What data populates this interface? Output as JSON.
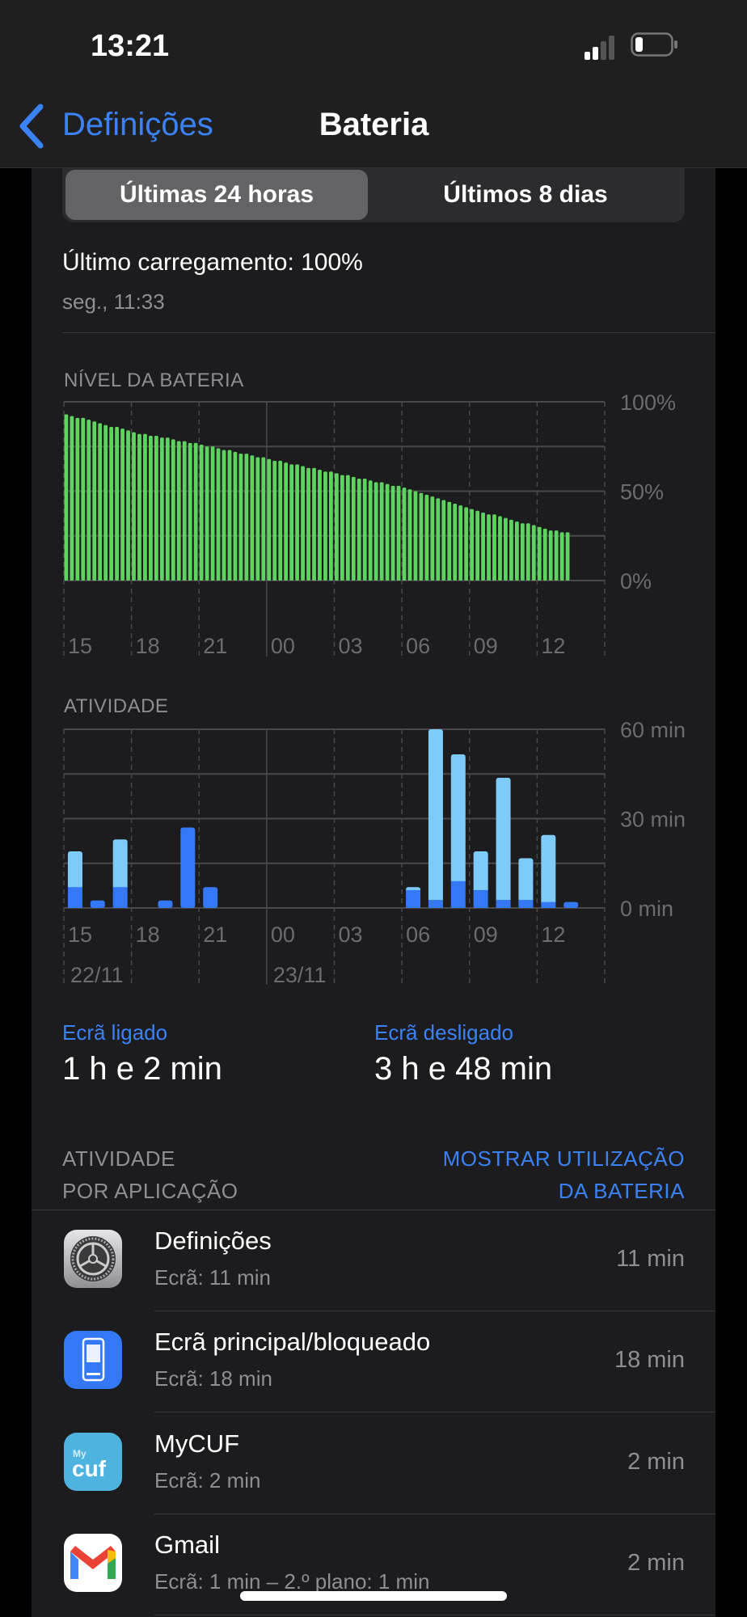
{
  "status_bar": {
    "time": "13:21",
    "signal_bars": 2,
    "battery_level_pct": 20
  },
  "nav": {
    "back_label": "Definições",
    "title": "Bateria"
  },
  "segmented": {
    "options": [
      "Últimas 24 horas",
      "Últimos 8 dias"
    ],
    "selected": 0
  },
  "last_charge": {
    "label": "Último carregamento: 100%",
    "when": "seg., 11:33"
  },
  "colors": {
    "accent": "#3b82f6",
    "battery_green": "#5fd35f",
    "screen_on": "#3478f6",
    "screen_off": "#7ecbfa"
  },
  "chart_data": [
    {
      "type": "bar",
      "title": "NÍVEL DA BATERIA",
      "x_ticks": [
        "15",
        "18",
        "21",
        "00",
        "03",
        "06",
        "09",
        "12"
      ],
      "y_ticks": [
        "100%",
        "50%",
        "0%"
      ],
      "ylim": [
        0,
        100
      ],
      "values": [
        93,
        92,
        91,
        91,
        90,
        89,
        88,
        87,
        86,
        86,
        85,
        84,
        83,
        82,
        82,
        81,
        81,
        80,
        80,
        79,
        78,
        78,
        77,
        77,
        76,
        75,
        75,
        74,
        73,
        73,
        72,
        71,
        71,
        70,
        69,
        69,
        68,
        67,
        67,
        66,
        65,
        65,
        64,
        63,
        63,
        62,
        61,
        61,
        60,
        59,
        59,
        58,
        57,
        57,
        56,
        55,
        55,
        54,
        53,
        53,
        52,
        51,
        50,
        49,
        48,
        47,
        46,
        45,
        44,
        43,
        42,
        41,
        40,
        39,
        38,
        37,
        37,
        36,
        35,
        34,
        33,
        32,
        32,
        31,
        30,
        29,
        28,
        28,
        27,
        27
      ]
    },
    {
      "type": "bar",
      "stacked": true,
      "title": "ATIVIDADE",
      "x_ticks": [
        "15",
        "18",
        "21",
        "00",
        "03",
        "06",
        "09",
        "12"
      ],
      "date_ticks": [
        "22/11",
        "23/11"
      ],
      "y_ticks": [
        "60 min",
        "30 min",
        "0 min"
      ],
      "ylim": [
        0,
        60
      ],
      "categories": [
        "15",
        "16",
        "17",
        "18",
        "19",
        "20",
        "21",
        "22",
        "23",
        "00",
        "01",
        "02",
        "03",
        "04",
        "05",
        "06",
        "07",
        "08",
        "09",
        "10",
        "11",
        "12",
        "13"
      ],
      "series": [
        {
          "values": [
            7,
            2.5,
            7,
            0,
            2.5,
            27,
            7,
            0,
            0,
            0,
            0,
            0,
            0,
            0,
            0,
            6,
            2.7,
            9,
            6,
            2.7,
            2.7,
            2,
            2
          ]
        },
        {
          "values": [
            12,
            0,
            16,
            0,
            0,
            0,
            0,
            0,
            0,
            0,
            0,
            0,
            0,
            0,
            0,
            1,
            57.3,
            42.6,
            13,
            41,
            14,
            22.5,
            0
          ]
        }
      ]
    }
  ],
  "totals": {
    "on_label": "Ecrã ligado",
    "on_value": "1 h e 2 min",
    "off_label": "Ecrã desligado",
    "off_value": "3 h e 48 min"
  },
  "apps_section": {
    "title_line1": "ATIVIDADE",
    "title_line2": "POR APLICAÇÃO",
    "action_line1": "MOSTRAR UTILIZAÇÃO",
    "action_line2": "DA BATERIA"
  },
  "apps": [
    {
      "name": "Definições",
      "detail": "Ecrã: 11 min",
      "value": "11 min",
      "icon": "settings-gear"
    },
    {
      "name": "Ecrã principal/bloqueado",
      "detail": "Ecrã: 18 min",
      "value": "18 min",
      "icon": "home-lock-screen"
    },
    {
      "name": "MyCUF",
      "detail": "Ecrã: 2 min",
      "value": "2 min",
      "icon": "mycuf",
      "icon_text": "My cuf"
    },
    {
      "name": "Gmail",
      "detail": "Ecrã: 1 min – 2.º plano: 1 min",
      "value": "2 min",
      "icon": "gmail"
    }
  ]
}
